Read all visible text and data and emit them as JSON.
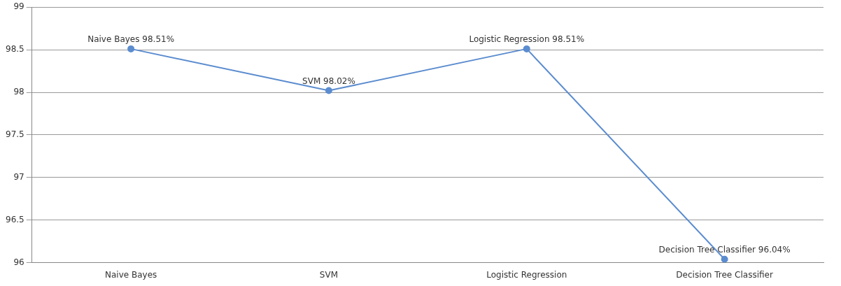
{
  "chart_data": {
    "type": "line",
    "categories": [
      "Naive Bayes",
      "SVM",
      "Logistic Regression",
      "Decision Tree Classifier"
    ],
    "series": [
      {
        "color": "#5b8ccf",
        "values": [
          98.51,
          98.02,
          98.51,
          96.04
        ],
        "value_labels": [
          "Naive Bayes 98.51%",
          "SVM 98.02%",
          "Logistic Regression 98.51%",
          "Decision Tree Classifier 96.04%"
        ]
      }
    ],
    "ylim": [
      96,
      99
    ],
    "yticks": [
      96,
      96.5,
      97,
      97.5,
      98,
      98.5,
      99
    ],
    "grid": "y",
    "legend": false,
    "marker": "circle",
    "line_style": "solid"
  }
}
